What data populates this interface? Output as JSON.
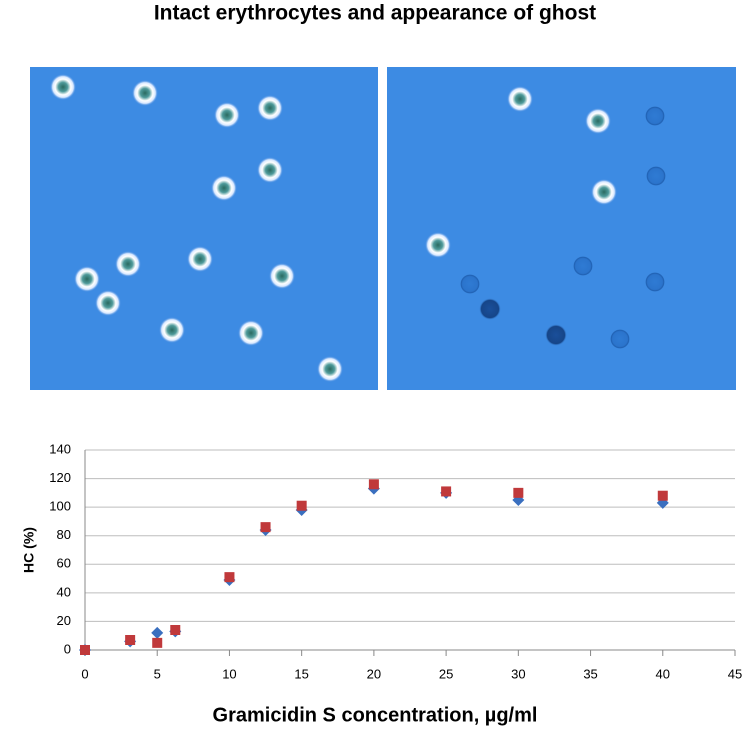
{
  "title": "Intact erythrocytes and appearance of ghost",
  "chart_data": {
    "type": "scatter",
    "xlabel": "Gramicidin S concentration, µg/ml",
    "ylabel": "HC (%)",
    "x": [
      0,
      3.125,
      5,
      6.25,
      10,
      12.5,
      15,
      20,
      25,
      30,
      40
    ],
    "series": [
      {
        "marker": "diamond",
        "color": "#3a6fbf",
        "values": [
          0,
          6,
          12,
          13,
          49,
          84,
          98,
          113,
          110,
          105,
          103
        ]
      },
      {
        "marker": "square",
        "color": "#c0393b",
        "values": [
          0,
          7,
          5,
          14,
          51,
          86,
          101,
          116,
          111,
          110,
          108
        ]
      }
    ],
    "xlim": [
      0,
      45
    ],
    "xticks": [
      0,
      5,
      10,
      15,
      20,
      25,
      30,
      35,
      40,
      45
    ],
    "ylim": [
      0,
      140
    ],
    "yticks": [
      0,
      20,
      40,
      60,
      80,
      100,
      120,
      140
    ],
    "grid": true
  }
}
